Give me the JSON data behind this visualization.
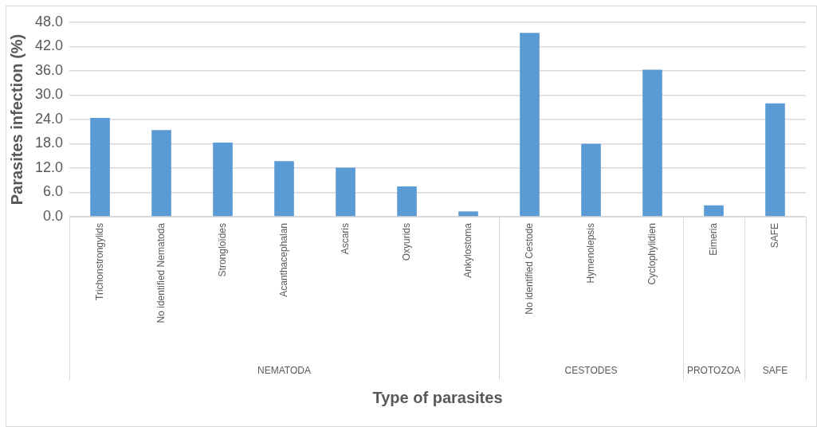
{
  "chart_data": {
    "type": "bar",
    "xlabel": "Type of parasites",
    "ylabel": "Parasites infection (%)",
    "categories": [
      "Trichonstrongylids",
      "No identified Nematoda",
      "Strongloïdes",
      "Acanthacephalan",
      "Ascaris",
      "Oxyurids",
      "Ankylostoma",
      "No identified Cestode",
      "Hymenolepsis",
      "Cyclophylidien",
      "Eimeria",
      "SAFE"
    ],
    "values": [
      24.4,
      21.4,
      18.3,
      13.7,
      12.1,
      7.5,
      1.3,
      45.4,
      18.0,
      36.3,
      2.8,
      28.0
    ],
    "color": "#5b9bd5",
    "ylim": [
      0,
      48
    ],
    "yticks": [
      {
        "value": 0,
        "label": "0.0"
      },
      {
        "value": 6,
        "label": "6.0"
      },
      {
        "value": 12,
        "label": "12.0"
      },
      {
        "value": 18,
        "label": "18.0"
      },
      {
        "value": 24,
        "label": "24.0"
      },
      {
        "value": 30,
        "label": "30.0"
      },
      {
        "value": 36,
        "label": "36.0"
      },
      {
        "value": 42,
        "label": "42.0"
      },
      {
        "value": 48,
        "label": "48.0"
      }
    ],
    "grid": "y",
    "legend": false,
    "annotations": [
      "NEMATODA",
      "CESTODES",
      "PROTOZOA",
      "SAFE"
    ]
  }
}
